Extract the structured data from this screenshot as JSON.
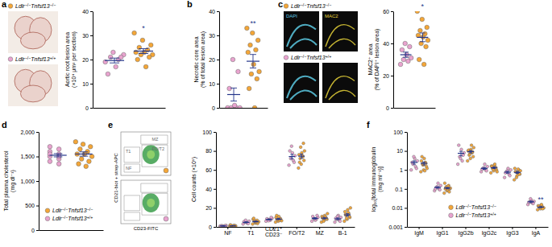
{
  "chart_data": [
    {
      "panel": "a",
      "type": "strip",
      "y_label": "Aortic root lesion area (×10⁴ μm² per section)",
      "categories": [
        null
      ],
      "ylim": [
        0,
        40
      ],
      "yticks": [
        0,
        10,
        20,
        30,
        40
      ],
      "series": [
        {
          "name": "Ldlr−/−Tnfsf13+/+",
          "color": "#e9a3cf",
          "values": [
            19.6
          ],
          "sem": [
            1.0
          ],
          "points": [
            [
              19,
              20,
              21,
              22,
              17,
              14,
              21,
              23
            ]
          ]
        },
        {
          "name": "Ldlr−/−Tnfsf13−/−",
          "color": "#f4a637",
          "values": [
            23.5
          ],
          "sem": [
            1.0
          ],
          "points": [
            [
              31,
              28,
              26,
              25,
              24,
              23,
              23,
              22,
              22,
              21,
              20,
              17
            ]
          ],
          "annotations": [
            "*"
          ]
        }
      ]
    },
    {
      "panel": "b",
      "type": "strip",
      "y_label": "Necrotic core area (% of total lesion area)",
      "categories": [
        null
      ],
      "ylim": [
        0,
        40
      ],
      "yticks": [
        0,
        10,
        20,
        30,
        40
      ],
      "series": [
        {
          "color": "#e9a3cf",
          "values": [
            5.5
          ],
          "sem": [
            2.7
          ],
          "points": [
            [
              0,
              0,
              0,
              0,
              1,
              8,
              15,
              20
            ]
          ]
        },
        {
          "color": "#f4a637",
          "values": [
            19.3
          ],
          "sem": [
            2.8
          ],
          "points": [
            [
              33,
              31,
              28,
              26,
              24,
              23,
              18,
              15,
              14,
              12,
              8,
              0
            ]
          ],
          "annotations": [
            "**"
          ]
        }
      ]
    },
    {
      "panel": "c",
      "type": "strip",
      "y_label": "MAC2⁺ area (% of DAPI⁺ lesion area)",
      "categories": [
        null
      ],
      "ylim": [
        0,
        60
      ],
      "yticks": [
        0,
        20,
        40,
        60
      ],
      "images": {
        "labels": [
          "DAPI",
          "MAC2"
        ]
      },
      "series": [
        {
          "name": "Ldlr−/−Tnfsf13+/+",
          "color": "#e9a3cf",
          "values": [
            33
          ],
          "sem": [
            1.6
          ],
          "points": [
            [
              27,
              29,
              30,
              31,
              33,
              36,
              38,
              40
            ]
          ]
        },
        {
          "name": "Ldlr−/−Tnfsf13−/−",
          "color": "#f4a637",
          "values": [
            43.8
          ],
          "sem": [
            2.7
          ],
          "points": [
            [
              60,
              55,
              50,
              48,
              46,
              45,
              44,
              42,
              40,
              38,
              30,
              27
            ]
          ],
          "annotations": [
            "*"
          ]
        }
      ]
    },
    {
      "panel": "d",
      "type": "strip",
      "y_label": "Total plasma cholesterol (mg dl⁻¹)",
      "categories": [
        null
      ],
      "ylim": [
        0,
        2000
      ],
      "yticks": [
        0,
        500,
        {
          "value": 1000,
          "label": "1,000"
        },
        {
          "value": 1500,
          "label": "1,500"
        },
        {
          "value": 2000,
          "label": "2,000"
        }
      ],
      "legend": "lower right",
      "series": [
        {
          "name": "Ldlr−/−Tnfsf13+/+",
          "color": "#e9a3cf",
          "values": [
            1525
          ],
          "sem": [
            33
          ],
          "points": [
            [
              1700,
              1650,
              1600,
              1550,
              1500,
              1450,
              1400,
              1350,
              1550,
              1500
            ]
          ]
        },
        {
          "name": "Ldlr−/−Tnfsf13−/−",
          "color": "#f4a637",
          "values": [
            1550
          ],
          "sem": [
            44
          ],
          "points": [
            [
              1800,
              1750,
              1700,
              1650,
              1600,
              1550,
              1550,
              1500,
              1450,
              1400,
              1350,
              1300
            ]
          ]
        }
      ]
    },
    {
      "panel": "e",
      "type": "strip",
      "y_label": "Cell counts (×10⁶)",
      "categories": [
        "NF",
        "T1",
        "CD21⁺ CD23⁻",
        "FO/T2",
        "MZ",
        "B-1"
      ],
      "ylim": [
        0,
        100
      ],
      "yticks": [
        0,
        20,
        40,
        60,
        80,
        100
      ],
      "flow_plot": {
        "gate_labels": [
          "MZ",
          "FO/T2",
          "T1",
          "NF"
        ],
        "x_label": "CD23-FITC",
        "y_label": "CD21-biot + strep-APC"
      },
      "series": [
        {
          "color": "#e9a3cf",
          "values": [
            1.05,
            4.8,
            7.8,
            74.1,
            9.0,
            8.5
          ],
          "sem": [
            0.1,
            0.5,
            0.5,
            2.3,
            0.7,
            0.9
          ],
          "points": [
            [
              0.8,
              1.0,
              1.2,
              1.5,
              0.6,
              1.1,
              1.3,
              0.9
            ],
            [
              3,
              4,
              5,
              6,
              4.5,
              5.5,
              3.5,
              7
            ],
            [
              6,
              7,
              8,
              9,
              7.5,
              8.5,
              10,
              6.5
            ],
            [
              65,
              70,
              72,
              75,
              78,
              80,
              68,
              85
            ],
            [
              6,
              8,
              9,
              10,
              7,
              11,
              12,
              8.5
            ],
            [
              5,
              7,
              8,
              10,
              12,
              9,
              6,
              11
            ]
          ]
        },
        {
          "color": "#f4a637",
          "values": [
            1.15,
            5.6,
            8.2,
            74.5,
            9.2,
            12.7
          ],
          "sem": [
            0.13,
            0.5,
            0.6,
            2.2,
            0.7,
            1.2
          ],
          "points": [
            [
              0.5,
              0.8,
              1,
              1.2,
              1.5,
              2,
              0.9,
              1.1,
              0.7,
              1.3,
              1.8,
              1
            ],
            [
              3,
              4,
              5,
              6,
              7,
              8,
              4.5,
              5.5,
              6.5,
              3.5,
              9,
              5
            ],
            [
              5,
              6,
              7,
              8,
              9,
              10,
              11,
              6.5,
              7.5,
              8.5,
              12,
              7
            ],
            [
              62,
              66,
              70,
              72,
              74,
              76,
              78,
              80,
              84,
              88,
              68,
              75
            ],
            [
              5,
              7,
              8,
              9,
              10,
              11,
              12,
              14,
              6,
              8.5,
              9.5,
              10.5
            ],
            [
              6,
              8,
              10,
              12,
              14,
              16,
              18,
              20,
              9,
              11,
              13,
              15
            ]
          ]
        }
      ]
    },
    {
      "panel": "f",
      "type": "strip",
      "y_label": "log₁₀[total immunoglobulin (mg ml⁻¹)]",
      "categories": [
        "IgM",
        "IgG1",
        "IgG2b",
        "IgG2c",
        "IgG3",
        "IgA"
      ],
      "log": "y",
      "ylim": [
        0.001,
        100
      ],
      "yticks": [
        0.001,
        0.01,
        0.1,
        1,
        10,
        100
      ],
      "legend": "lower center",
      "series": [
        {
          "name": "Ldlr−/−Tnfsf13+/+",
          "color": "#e9a3cf",
          "values": [
            2.5,
            0.12,
            7.5,
            1.2,
            0.76,
            0.021
          ],
          "sem": [
            0.5,
            0.01,
            2.0,
            0.13,
            0.09,
            0.002
          ],
          "points": [
            [
              1,
              1.5,
              2,
              3,
              4,
              2.5,
              1.2,
              5
            ],
            [
              0.08,
              0.1,
              0.12,
              0.15,
              0.2,
              0.1,
              0.09,
              0.13
            ],
            [
              2,
              3,
              5,
              8,
              12,
              20,
              6,
              4
            ],
            [
              0.8,
              1,
              1.2,
              1.5,
              2,
              1.1,
              0.9,
              1.3
            ],
            [
              0.4,
              0.6,
              0.8,
              1,
              1.2,
              0.7,
              0.5,
              0.9
            ],
            [
              0.015,
              0.018,
              0.02,
              0.022,
              0.025,
              0.02,
              0.017,
              0.03
            ]
          ]
        },
        {
          "name": "Ldlr−/−Tnfsf13−/−",
          "color": "#f4a637",
          "values": [
            2.2,
            0.11,
            9.2,
            1.3,
            0.74,
            0.011
          ],
          "sem": [
            0.4,
            0.01,
            1.4,
            0.12,
            0.08,
            0.0006
          ],
          "points": [
            [
              0.8,
              1,
              1.5,
              2,
              2.5,
              3,
              4,
              1.2,
              1.8,
              2.2,
              5,
              0.9
            ],
            [
              0.06,
              0.08,
              0.1,
              0.12,
              0.15,
              0.2,
              0.09,
              0.11,
              0.13,
              0.07,
              0.1,
              0.14
            ],
            [
              3,
              4,
              5,
              6,
              8,
              10,
              12,
              15,
              7,
              9,
              11,
              20
            ],
            [
              0.7,
              0.9,
              1,
              1.2,
              1.4,
              1.6,
              1.8,
              0.8,
              1.1,
              1.3,
              1.5,
              2
            ],
            [
              0.3,
              0.5,
              0.6,
              0.8,
              1,
              1.2,
              0.7,
              0.9,
              0.4,
              0.6,
              0.8,
              1.1
            ],
            [
              0.008,
              0.009,
              0.01,
              0.011,
              0.012,
              0.013,
              0.014,
              0.01,
              0.011,
              0.009,
              0.012,
              0.015
            ]
          ],
          "annotations": [
            null,
            null,
            null,
            null,
            null,
            "**"
          ]
        }
      ]
    }
  ]
}
